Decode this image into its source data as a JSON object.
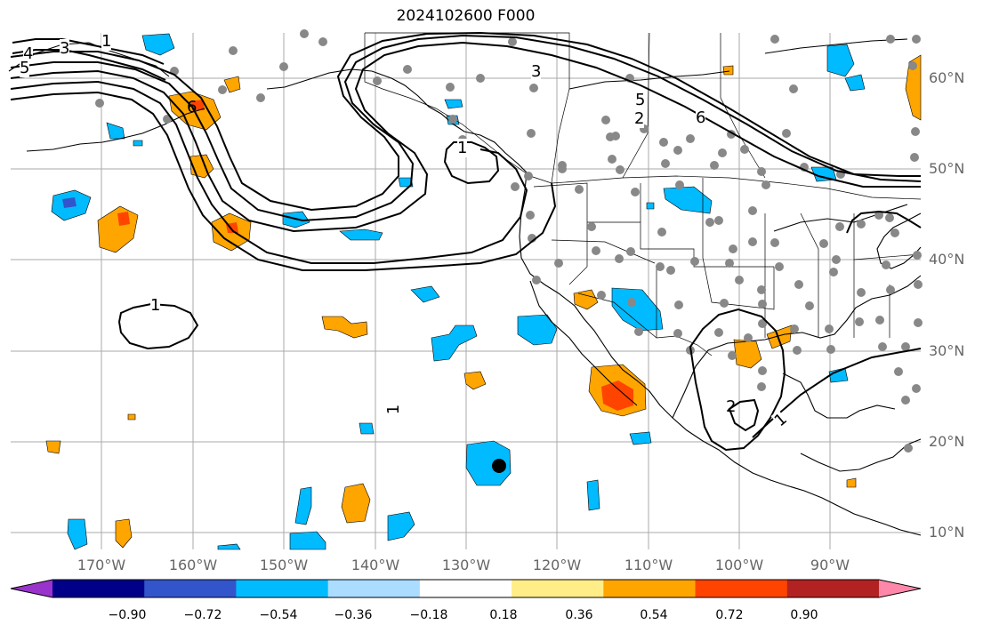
{
  "title": "2024102600 F000",
  "map": {
    "lon_labels": [
      "170°W",
      "160°W",
      "150°W",
      "140°W",
      "130°W",
      "120°W",
      "110°W",
      "100°W",
      "90°W"
    ],
    "lat_labels": [
      "60°N",
      "50°N",
      "40°N",
      "30°N",
      "20°N",
      "10°N"
    ]
  },
  "contour_labels": [
    "1",
    "1",
    "1",
    "1",
    "1",
    "2",
    "2",
    "3",
    "3",
    "4",
    "5",
    "5",
    "6",
    "6"
  ],
  "colorbar": {
    "colors": [
      "#9933cc",
      "#000088",
      "#3355cc",
      "#00bbff",
      "#aaddff",
      "#ffffff",
      "#ffee88",
      "#ffa500",
      "#ff4400",
      "#b22222",
      "#ff88aa"
    ],
    "tick_labels": [
      "−0.90",
      "−0.72",
      "−0.54",
      "−0.36",
      "−0.18",
      "0.18",
      "0.36",
      "0.54",
      "0.72",
      "0.90"
    ]
  },
  "colors": {
    "positive_mid": "#ffa500",
    "positive_high": "#ff4400",
    "negative_mid": "#00bbff",
    "station": "#888888"
  }
}
